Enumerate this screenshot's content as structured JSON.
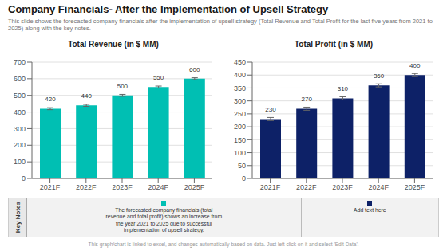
{
  "title": "Company Financials- After the Implementation of Upsell Strategy",
  "subtitle": "This slide shows the forecasted company financials after the implementation of upsell strategy (Total Revenue and Total Profit for the last five  years from 2021 to 2025) along with the key notes.",
  "annotations": [
    "Key Notes",
    "The forecasted company financials (total\nrevenue and total profit) shows an increase from\nthe year 2021 to 2025 due to successful\nimplementation of upsell strategy.",
    "Add text here",
    "This graph/chart is linked to excel, and changes automatically based on data. Just left click on it and select 'Edit Data'."
  ],
  "chart_data": [
    {
      "type": "bar",
      "title": "Total Revenue (in $ MM)",
      "categories": [
        "2021F",
        "2022F",
        "2023F",
        "2024F",
        "2025F"
      ],
      "values": [
        420,
        440,
        500,
        550,
        600
      ],
      "errors": [
        6,
        6,
        6,
        6,
        6
      ],
      "color": "#00BFB3",
      "ylim": [
        0,
        700
      ],
      "yticks": [
        0,
        100,
        200,
        300,
        400,
        500,
        600,
        700
      ],
      "grid": true,
      "data_labels": true
    },
    {
      "type": "bar",
      "title": "Total Profit (in $ MM)",
      "categories": [
        "2021F",
        "2022F",
        "2023F",
        "2024F",
        "2025F"
      ],
      "values": [
        230,
        270,
        310,
        360,
        400
      ],
      "errors": [
        6,
        6,
        6,
        6,
        6
      ],
      "color": "#0D2167",
      "ylim": [
        0,
        450
      ],
      "yticks": [
        0,
        50,
        100,
        150,
        200,
        250,
        300,
        350,
        400,
        450
      ],
      "grid": true,
      "data_labels": true
    }
  ]
}
